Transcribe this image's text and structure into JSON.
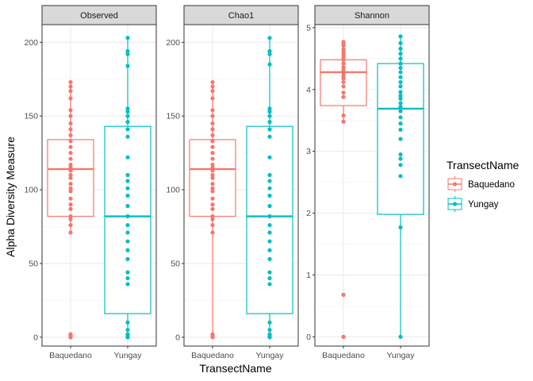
{
  "chart_data": {
    "type": "box",
    "ylabel": "Alpha Diversity Measure",
    "xlabel": "TransectName",
    "categories": [
      "Baquedano",
      "Yungay"
    ],
    "legend": {
      "title": "TransectName",
      "placement": "right",
      "entries": [
        {
          "name": "Baquedano",
          "color": "#F8766D"
        },
        {
          "name": "Yungay",
          "color": "#00BFC4"
        }
      ]
    },
    "grid": true,
    "panels": [
      {
        "name": "Observed",
        "ylim": [
          -6,
          212
        ],
        "yticks": [
          0,
          50,
          100,
          150,
          200
        ],
        "series": [
          {
            "name": "Baquedano",
            "color": "#F8766D",
            "box": {
              "min": 71,
              "q1": 82,
              "median": 114,
              "q3": 134,
              "max": 173
            },
            "outliers": [
              0,
              1,
              2
            ],
            "points": [
              0,
              1,
              2,
              71,
              76,
              80,
              82,
              87,
              90,
              94,
              99,
              101,
              104,
              108,
              110,
              113,
              115,
              117,
              121,
              125,
              129,
              133,
              137,
              141,
              145,
              150,
              154,
              162,
              167,
              170,
              173
            ]
          },
          {
            "name": "Yungay",
            "color": "#00BFC4",
            "box": {
              "min": 0,
              "q1": 16,
              "median": 82,
              "q3": 143,
              "max": 203
            },
            "outliers": [],
            "points": [
              0,
              1,
              2,
              5,
              10,
              36,
              40,
              44,
              53,
              59,
              65,
              71,
              76,
              82,
              89,
              96,
              101,
              106,
              110,
              122,
              136,
              141,
              146,
              150,
              153,
              155,
              184,
              192,
              194,
              203
            ]
          }
        ]
      },
      {
        "name": "Chao1",
        "ylim": [
          -6,
          212
        ],
        "yticks": [
          0,
          50,
          100,
          150,
          200
        ],
        "series": [
          {
            "name": "Baquedano",
            "color": "#F8766D",
            "box": {
              "min": 0,
              "q1": 82,
              "median": 114,
              "q3": 134,
              "max": 173
            },
            "outliers": [],
            "points": [
              0,
              1,
              2,
              71,
              76,
              80,
              82,
              87,
              90,
              94,
              99,
              101,
              104,
              108,
              110,
              113,
              115,
              117,
              121,
              125,
              129,
              133,
              137,
              141,
              145,
              150,
              154,
              162,
              167,
              170,
              173
            ]
          },
          {
            "name": "Yungay",
            "color": "#00BFC4",
            "box": {
              "min": 0,
              "q1": 16,
              "median": 82,
              "q3": 143,
              "max": 203
            },
            "outliers": [],
            "points": [
              0,
              1,
              2,
              5,
              10,
              36,
              40,
              44,
              53,
              59,
              65,
              71,
              76,
              82,
              89,
              96,
              101,
              106,
              110,
              122,
              136,
              141,
              146,
              150,
              153,
              155,
              185,
              192,
              194,
              203
            ]
          }
        ]
      },
      {
        "name": "Shannon",
        "ylim": [
          -0.15,
          5.05
        ],
        "yticks": [
          0,
          1,
          2,
          3,
          4,
          5
        ],
        "series": [
          {
            "name": "Baquedano",
            "color": "#F8766D",
            "box": {
              "min": 3.48,
              "q1": 3.74,
              "median": 4.28,
              "q3": 4.48,
              "max": 4.77
            },
            "outliers": [
              0,
              0.68
            ],
            "points": [
              0,
              0.68,
              3.48,
              3.58,
              3.88,
              3.95,
              4.05,
              4.12,
              4.18,
              4.22,
              4.27,
              4.31,
              4.36,
              4.42,
              4.48,
              4.52,
              4.56,
              4.6,
              4.65,
              4.71,
              4.75,
              4.77
            ]
          },
          {
            "name": "Yungay",
            "color": "#00BFC4",
            "box": {
              "min": 0,
              "q1": 1.98,
              "median": 3.69,
              "q3": 4.42,
              "max": 4.86
            },
            "outliers": [],
            "points": [
              0,
              1.77,
              2.6,
              2.78,
              2.88,
              2.95,
              3.2,
              3.35,
              3.45,
              3.55,
              3.65,
              3.72,
              3.78,
              3.85,
              3.9,
              3.96,
              4.05,
              4.12,
              4.2,
              4.28,
              4.35,
              4.42,
              4.5,
              4.58,
              4.66,
              4.75,
              4.86
            ]
          }
        ]
      }
    ]
  }
}
